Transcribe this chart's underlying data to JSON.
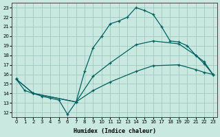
{
  "xlabel": "Humidex (Indice chaleur)",
  "bg_color": "#c8e8e0",
  "grid_color": "#a0c8c0",
  "line_color": "#006060",
  "xlim": [
    -0.5,
    23.5
  ],
  "ylim": [
    11.5,
    23.5
  ],
  "xticks": [
    0,
    1,
    2,
    3,
    4,
    5,
    6,
    7,
    8,
    9,
    10,
    11,
    12,
    13,
    14,
    15,
    16,
    17,
    18,
    19,
    20,
    21,
    22,
    23
  ],
  "yticks": [
    12,
    13,
    14,
    15,
    16,
    17,
    18,
    19,
    20,
    21,
    22,
    23
  ],
  "line1_x": [
    0,
    1,
    2,
    3,
    4,
    5,
    6,
    7,
    8,
    9,
    10,
    11,
    12,
    13,
    14,
    15,
    16,
    17,
    18,
    19,
    20,
    21,
    22,
    23
  ],
  "line1_y": [
    15.5,
    14.3,
    14.0,
    13.7,
    13.5,
    13.3,
    11.8,
    13.1,
    16.3,
    18.8,
    20.0,
    21.3,
    21.6,
    22.0,
    23.0,
    22.7,
    22.3,
    21.0,
    19.5,
    19.4,
    19.0,
    18.0,
    17.1,
    16.0
  ],
  "line2_x": [
    0,
    2,
    7,
    9,
    11,
    14,
    16,
    19,
    21,
    22,
    23
  ],
  "line2_y": [
    15.5,
    14.0,
    13.1,
    15.8,
    17.2,
    19.1,
    19.5,
    19.2,
    18.0,
    17.3,
    16.0
  ],
  "line3_x": [
    0,
    2,
    7,
    9,
    11,
    14,
    16,
    19,
    21,
    22,
    23
  ],
  "line3_y": [
    15.5,
    14.0,
    13.1,
    14.3,
    15.2,
    16.3,
    16.9,
    17.0,
    16.5,
    16.2,
    16.0
  ]
}
